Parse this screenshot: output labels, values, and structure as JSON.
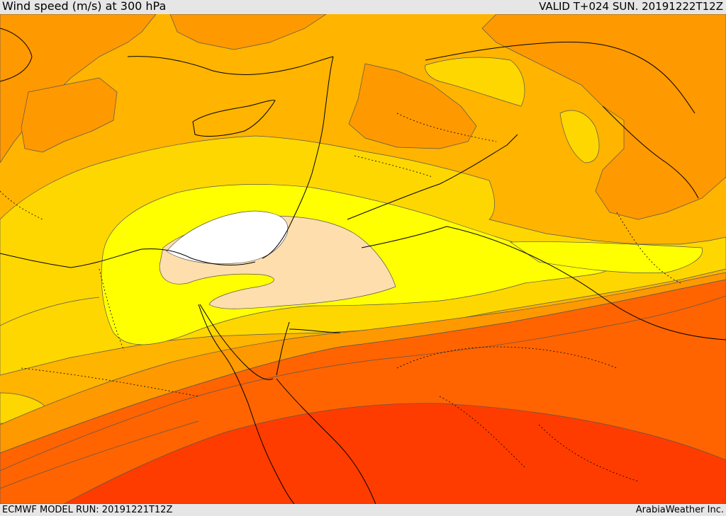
{
  "header": {
    "title": "Wind speed (m/s) at 300 hPa",
    "valid": "VALID T+024 SUN. 20191222T12Z"
  },
  "footer": {
    "model_run": "ECMWF MODEL RUN: 20191221T12Z",
    "credit": "ArabiaWeather Inc."
  },
  "colors": {
    "band_orange": "#ff9900",
    "band_amber": "#ffb400",
    "band_gold": "#ffd700",
    "band_yellow": "#ffff00",
    "band_peach": "#ffdead",
    "band_white": "#ffffff",
    "band_dark_orange": "#ff6400",
    "band_red_orange": "#ff3c00",
    "coastline": "#000000",
    "contour": "#555555"
  }
}
